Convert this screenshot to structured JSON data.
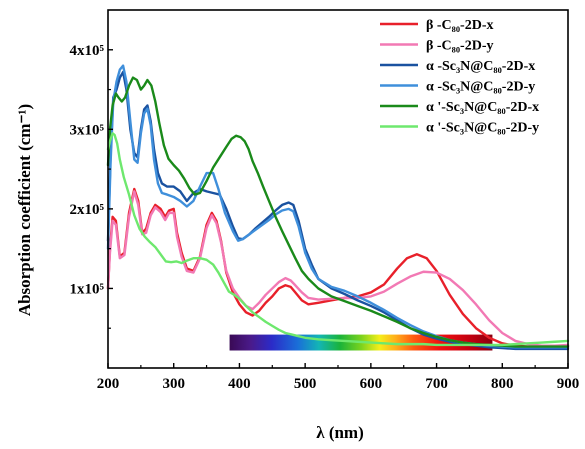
{
  "chart_data": {
    "type": "line",
    "xlabel": "λ (nm)",
    "ylabel": "Absorption coefficient  (cm⁻¹)",
    "xlim": [
      200,
      900
    ],
    "ylim": [
      0,
      450000
    ],
    "x_ticks": [
      200,
      300,
      400,
      500,
      600,
      700,
      800,
      900
    ],
    "x_tick_labels": [
      "200",
      "300",
      "400",
      "500",
      "600",
      "700",
      "800",
      "900"
    ],
    "y_ticks": [
      100000,
      200000,
      300000,
      400000
    ],
    "y_tick_labels": [
      "1x10⁵",
      "2x10⁵",
      "3x10⁵",
      "4x10⁵"
    ],
    "grid": false,
    "legend_position": "top-right",
    "spectrum_bar": {
      "x_start": 385,
      "x_end": 785,
      "y_bottom": 22000,
      "y_top": 42000
    },
    "series": [
      {
        "name": "β -C₈₀-2D-x",
        "color": "#e8202a",
        "x": [
          200,
          203,
          207,
          212,
          218,
          225,
          232,
          240,
          246,
          252,
          258,
          265,
          272,
          280,
          287,
          293,
          300,
          305,
          312,
          320,
          330,
          340,
          350,
          358,
          365,
          372,
          380,
          390,
          400,
          410,
          420,
          430,
          440,
          450,
          460,
          470,
          478,
          485,
          495,
          505,
          520,
          540,
          560,
          580,
          600,
          620,
          640,
          655,
          670,
          685,
          700,
          720,
          740,
          760,
          780,
          800,
          820,
          840,
          860,
          880,
          900
        ],
        "y": [
          100000,
          150000,
          190000,
          185000,
          140000,
          145000,
          195000,
          225000,
          210000,
          170000,
          175000,
          195000,
          205000,
          200000,
          190000,
          198000,
          200000,
          170000,
          145000,
          125000,
          122000,
          140000,
          180000,
          195000,
          185000,
          160000,
          120000,
          95000,
          80000,
          70000,
          66000,
          72000,
          82000,
          90000,
          100000,
          104000,
          102000,
          95000,
          85000,
          80000,
          82000,
          85000,
          88000,
          90000,
          95000,
          105000,
          125000,
          138000,
          143000,
          138000,
          122000,
          92000,
          68000,
          50000,
          38000,
          31000,
          28000,
          27000,
          26000,
          27000,
          28000
        ]
      },
      {
        "name": "β -C₈₀-2D-y",
        "color": "#f279b4",
        "x": [
          200,
          203,
          207,
          212,
          218,
          225,
          232,
          240,
          246,
          252,
          258,
          265,
          272,
          280,
          287,
          293,
          300,
          305,
          312,
          320,
          330,
          340,
          350,
          358,
          365,
          372,
          380,
          390,
          400,
          410,
          420,
          430,
          440,
          450,
          460,
          470,
          478,
          485,
          495,
          505,
          520,
          540,
          560,
          580,
          600,
          620,
          640,
          660,
          680,
          700,
          720,
          740,
          760,
          780,
          800,
          820,
          840,
          860,
          880,
          900
        ],
        "y": [
          100000,
          145000,
          185000,
          180000,
          138000,
          142000,
          190000,
          222000,
          205000,
          168000,
          170000,
          192000,
          202000,
          196000,
          186000,
          195000,
          195000,
          165000,
          140000,
          122000,
          120000,
          138000,
          176000,
          192000,
          182000,
          158000,
          122000,
          100000,
          88000,
          78000,
          74000,
          82000,
          92000,
          100000,
          108000,
          113000,
          110000,
          104000,
          95000,
          88000,
          86000,
          87000,
          88000,
          88000,
          90000,
          96000,
          106000,
          115000,
          121000,
          120000,
          112000,
          98000,
          80000,
          60000,
          44000,
          34000,
          30000,
          28000,
          28000,
          29000
        ]
      },
      {
        "name": "α -Sc₃N@C₈₀-2D-x",
        "color": "#1a52a0",
        "x": [
          200,
          204,
          208,
          213,
          218,
          223,
          228,
          234,
          240,
          245,
          250,
          255,
          260,
          265,
          270,
          276,
          282,
          290,
          300,
          310,
          320,
          330,
          340,
          350,
          360,
          370,
          380,
          390,
          398,
          405,
          415,
          425,
          435,
          445,
          455,
          465,
          475,
          482,
          490,
          500,
          510,
          520,
          540,
          560,
          580,
          600,
          620,
          640,
          660,
          680,
          700,
          720,
          740,
          760,
          780,
          800,
          820,
          840,
          860,
          880,
          900
        ],
        "y": [
          160000,
          270000,
          340000,
          350000,
          365000,
          372000,
          350000,
          300000,
          270000,
          265000,
          300000,
          325000,
          330000,
          310000,
          275000,
          245000,
          232000,
          228000,
          228000,
          222000,
          210000,
          220000,
          225000,
          222000,
          220000,
          218000,
          200000,
          178000,
          163000,
          162000,
          168000,
          176000,
          183000,
          190000,
          198000,
          205000,
          208000,
          205000,
          185000,
          150000,
          130000,
          112000,
          100000,
          93000,
          85000,
          78000,
          70000,
          60000,
          50000,
          42000,
          37000,
          33000,
          30000,
          28000,
          26000,
          25000,
          24000,
          24000,
          24000,
          24000,
          24000
        ]
      },
      {
        "name": "α -Sc₃N@C₈₀-2D-y",
        "color": "#3f8fdb",
        "x": [
          200,
          204,
          208,
          213,
          218,
          223,
          228,
          234,
          240,
          245,
          250,
          255,
          260,
          265,
          270,
          276,
          282,
          290,
          300,
          310,
          320,
          330,
          340,
          350,
          360,
          368,
          378,
          390,
          398,
          405,
          415,
          425,
          435,
          445,
          455,
          465,
          475,
          482,
          490,
          500,
          510,
          520,
          540,
          560,
          580,
          600,
          620,
          640,
          660,
          680,
          700,
          720,
          740,
          760,
          780,
          800,
          820,
          840,
          860,
          880,
          900
        ],
        "y": [
          150000,
          260000,
          335000,
          360000,
          375000,
          380000,
          360000,
          310000,
          262000,
          258000,
          295000,
          320000,
          326000,
          305000,
          262000,
          232000,
          220000,
          218000,
          215000,
          210000,
          203000,
          210000,
          228000,
          245000,
          245000,
          225000,
          195000,
          172000,
          160000,
          162000,
          168000,
          174000,
          180000,
          186000,
          193000,
          198000,
          200000,
          197000,
          178000,
          145000,
          125000,
          112000,
          102000,
          97000,
          90000,
          82000,
          73000,
          63000,
          54000,
          46000,
          40000,
          35000,
          32000,
          30000,
          28000,
          27000,
          26000,
          26000,
          26000,
          26000,
          26000
        ]
      },
      {
        "name": "α '-Sc₃N@C₈₀-2D-x",
        "color": "#1a8a1a",
        "x": [
          200,
          203,
          207,
          212,
          216,
          221,
          226,
          232,
          238,
          244,
          250,
          255,
          260,
          266,
          272,
          278,
          285,
          292,
          300,
          308,
          316,
          324,
          332,
          340,
          350,
          360,
          370,
          380,
          388,
          395,
          402,
          408,
          414,
          420,
          428,
          436,
          445,
          455,
          465,
          475,
          485,
          495,
          505,
          520,
          540,
          560,
          580,
          600,
          620,
          640,
          660,
          680,
          700,
          720,
          740,
          760,
          780,
          800,
          820,
          840,
          860,
          880,
          900
        ],
        "y": [
          255000,
          300000,
          330000,
          345000,
          340000,
          335000,
          340000,
          355000,
          365000,
          362000,
          350000,
          355000,
          362000,
          355000,
          335000,
          308000,
          280000,
          263000,
          255000,
          248000,
          238000,
          226000,
          218000,
          220000,
          235000,
          252000,
          265000,
          278000,
          288000,
          292000,
          290000,
          285000,
          275000,
          260000,
          245000,
          228000,
          210000,
          190000,
          172000,
          155000,
          138000,
          122000,
          112000,
          100000,
          90000,
          84000,
          78000,
          72000,
          65000,
          58000,
          50000,
          44000,
          39000,
          35000,
          32000,
          30000,
          29000,
          28000,
          27000,
          27000,
          27000,
          27000,
          27000
        ]
      },
      {
        "name": "α '-Sc₃N@C₈₀-2D-y",
        "color": "#6ee86e",
        "x": [
          200,
          203,
          207,
          210,
          214,
          218,
          224,
          232,
          240,
          248,
          256,
          264,
          272,
          280,
          288,
          296,
          304,
          312,
          320,
          330,
          340,
          350,
          360,
          368,
          376,
          384,
          392,
          400,
          410,
          420,
          430,
          440,
          450,
          460,
          470,
          480,
          490,
          500,
          520,
          540,
          560,
          580,
          600,
          620,
          640,
          660,
          680,
          700,
          720,
          740,
          760,
          780,
          800,
          820,
          840,
          860,
          880,
          900
        ],
        "y": [
          275000,
          285000,
          295000,
          293000,
          282000,
          262000,
          240000,
          218000,
          192000,
          175000,
          165000,
          158000,
          152000,
          143000,
          134000,
          133000,
          134000,
          132000,
          135000,
          138000,
          138000,
          136000,
          130000,
          120000,
          108000,
          96000,
          92000,
          87000,
          78000,
          70000,
          64000,
          58000,
          53000,
          48000,
          44000,
          42000,
          40000,
          38000,
          36000,
          35000,
          34000,
          33000,
          32000,
          31000,
          30000,
          30000,
          30000,
          29000,
          29000,
          29000,
          29000,
          29000,
          29000,
          30000,
          31000,
          32000,
          33000,
          34000
        ]
      }
    ]
  }
}
